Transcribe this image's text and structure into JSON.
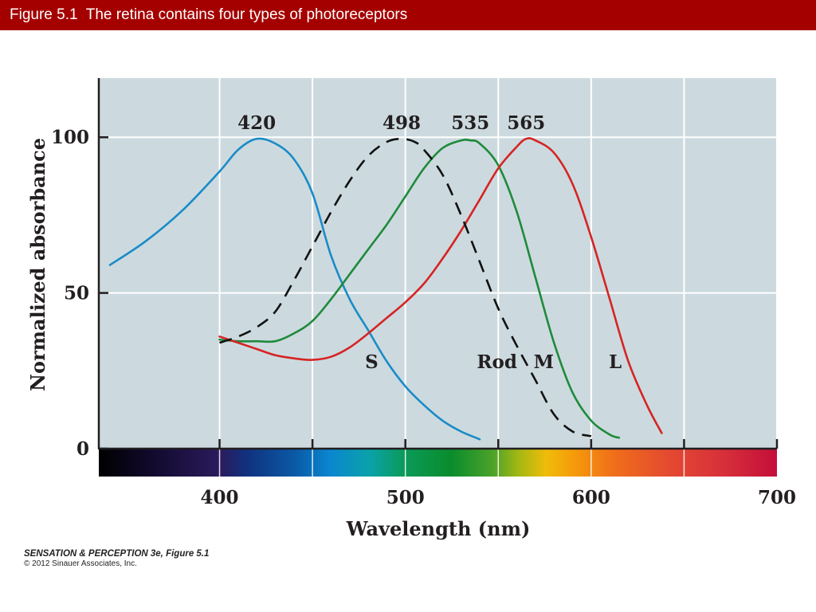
{
  "header": {
    "title": "Figure 5.1  The retina contains four types of photoreceptors"
  },
  "credit": {
    "source": "SENSATION & PERCEPTION 3e, Figure 5.1",
    "copyright": "© 2012 Sinauer Associates, Inc."
  },
  "colors": {
    "header_bg": "#a50000",
    "plot_bg": "#ccdadf",
    "grid": "#ffffff",
    "S": "#1a8bc7",
    "Rod": "#111111",
    "M": "#1f8a3a",
    "L": "#d62424"
  },
  "chart_data": {
    "type": "line",
    "title": "",
    "xlabel": "Wavelength (nm)",
    "ylabel": "Normalized absorbance",
    "xlim": [
      335,
      700
    ],
    "ylim": [
      0,
      119
    ],
    "x_ticks": [
      400,
      500,
      600,
      700
    ],
    "y_ticks": [
      0,
      50,
      100
    ],
    "grid": true,
    "spectrum_bar": true,
    "peak_labels": [
      "420",
      "498",
      "535",
      "565"
    ],
    "series": [
      {
        "name": "S",
        "peak": 420,
        "style": "solid",
        "points": [
          [
            341,
            59
          ],
          [
            360,
            66.5
          ],
          [
            380,
            76.5
          ],
          [
            400,
            89
          ],
          [
            410,
            96
          ],
          [
            420,
            99.5
          ],
          [
            430,
            98
          ],
          [
            440,
            93
          ],
          [
            450,
            82
          ],
          [
            460,
            62
          ],
          [
            470,
            48
          ],
          [
            480,
            38
          ],
          [
            490,
            28
          ],
          [
            500,
            20
          ],
          [
            510,
            14
          ],
          [
            520,
            9
          ],
          [
            530,
            5.5
          ],
          [
            540,
            3
          ]
        ]
      },
      {
        "name": "Rod",
        "peak": 498,
        "style": "dashed",
        "points": [
          [
            400,
            34
          ],
          [
            410,
            36
          ],
          [
            420,
            39
          ],
          [
            430,
            44
          ],
          [
            440,
            54
          ],
          [
            450,
            65
          ],
          [
            460,
            76
          ],
          [
            470,
            86
          ],
          [
            480,
            94
          ],
          [
            490,
            98.5
          ],
          [
            498,
            99.5
          ],
          [
            505,
            98.5
          ],
          [
            510,
            96
          ],
          [
            520,
            88
          ],
          [
            530,
            75
          ],
          [
            540,
            60
          ],
          [
            550,
            45
          ],
          [
            560,
            33
          ],
          [
            570,
            22
          ],
          [
            580,
            11
          ],
          [
            590,
            5.5
          ],
          [
            600,
            4
          ]
        ]
      },
      {
        "name": "M",
        "peak": 535,
        "style": "solid",
        "points": [
          [
            400,
            35
          ],
          [
            410,
            34.5
          ],
          [
            420,
            34.5
          ],
          [
            430,
            34.5
          ],
          [
            440,
            37
          ],
          [
            450,
            41
          ],
          [
            460,
            48
          ],
          [
            470,
            56
          ],
          [
            480,
            64
          ],
          [
            490,
            72
          ],
          [
            500,
            81
          ],
          [
            510,
            90
          ],
          [
            520,
            96.5
          ],
          [
            530,
            99
          ],
          [
            535,
            99
          ],
          [
            540,
            98
          ],
          [
            550,
            91
          ],
          [
            560,
            76
          ],
          [
            570,
            55
          ],
          [
            580,
            34
          ],
          [
            590,
            18
          ],
          [
            600,
            9
          ],
          [
            610,
            4.5
          ],
          [
            615,
            3.5
          ]
        ]
      },
      {
        "name": "L",
        "peak": 565,
        "style": "solid",
        "points": [
          [
            400,
            36
          ],
          [
            410,
            34
          ],
          [
            420,
            32
          ],
          [
            430,
            30
          ],
          [
            440,
            29
          ],
          [
            450,
            28.5
          ],
          [
            460,
            29.5
          ],
          [
            470,
            32.5
          ],
          [
            480,
            37
          ],
          [
            490,
            42
          ],
          [
            500,
            47
          ],
          [
            510,
            53
          ],
          [
            520,
            61
          ],
          [
            530,
            70
          ],
          [
            540,
            80
          ],
          [
            550,
            90
          ],
          [
            560,
            97
          ],
          [
            565,
            99.5
          ],
          [
            570,
            99
          ],
          [
            580,
            95
          ],
          [
            590,
            85
          ],
          [
            600,
            68
          ],
          [
            610,
            48
          ],
          [
            620,
            28
          ],
          [
            630,
            14
          ],
          [
            638,
            5
          ]
        ]
      }
    ]
  }
}
